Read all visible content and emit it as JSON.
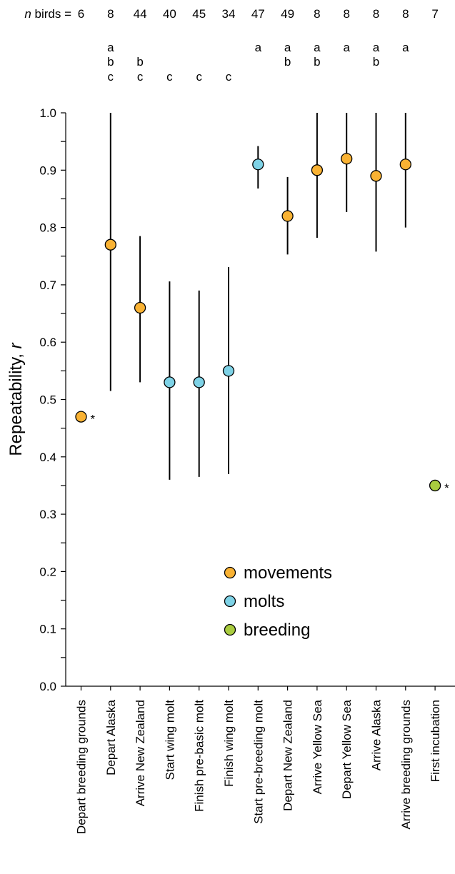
{
  "chart_data": {
    "type": "scatter",
    "title": "",
    "xlabel": "",
    "ylabel": "Repeatability,",
    "ylabel_italic": "r",
    "ylim": [
      0,
      1.0
    ],
    "yticks": [
      "0.0",
      "0.1",
      "0.2",
      "0.3",
      "0.4",
      "0.5",
      "0.6",
      "0.7",
      "0.8",
      "0.9",
      "1.0"
    ],
    "grid": false,
    "n_label_italic": "n",
    "n_label_rest": "birds =",
    "categories": [
      "Depart breeding grounds",
      "Depart Alaska",
      "Arrive New Zealand",
      "Start wing molt",
      "Finish pre-basic molt",
      "Finish wing molt",
      "Start pre-breeding molt",
      "Depart New Zealand",
      "Arrive Yellow Sea",
      "Depart Yellow Sea",
      "Arrive Alaska",
      "Arrive breeding grounds",
      "First incubation"
    ],
    "n_birds": [
      "6",
      "8",
      "44",
      "40",
      "45",
      "34",
      "47",
      "49",
      "8",
      "8",
      "8",
      "8",
      "7"
    ],
    "groups": [
      [],
      [
        "a",
        "b",
        "c"
      ],
      [
        "b",
        "c"
      ],
      [
        "c"
      ],
      [
        "c"
      ],
      [
        "c"
      ],
      [
        "a"
      ],
      [
        "a",
        "b"
      ],
      [
        "a",
        "b"
      ],
      [
        "a"
      ],
      [
        "a",
        "b"
      ],
      [
        "a"
      ],
      []
    ],
    "values": [
      0.47,
      0.77,
      0.66,
      0.53,
      0.53,
      0.55,
      0.91,
      0.82,
      0.9,
      0.92,
      0.89,
      0.91,
      0.35
    ],
    "ci_low": [
      null,
      0.515,
      0.53,
      0.36,
      0.365,
      0.37,
      0.868,
      0.753,
      0.782,
      0.827,
      0.758,
      0.8,
      null
    ],
    "ci_high": [
      null,
      1.0,
      0.785,
      0.706,
      0.69,
      0.731,
      0.942,
      0.888,
      1.0,
      1.0,
      1.0,
      1.0,
      null
    ],
    "category_type": [
      "movements",
      "movements",
      "movements",
      "molts",
      "molts",
      "molts",
      "molts",
      "movements",
      "movements",
      "movements",
      "movements",
      "movements",
      "breeding"
    ],
    "asterisk": [
      "*",
      "",
      "",
      "",
      "",
      "",
      "",
      "",
      "",
      "",
      "",
      "",
      "*"
    ],
    "legend": [
      {
        "name": "movements",
        "color": "#F9B233"
      },
      {
        "name": "molts",
        "color": "#7ED2E6"
      },
      {
        "name": "breeding",
        "color": "#A9CC3F"
      }
    ],
    "legend_position": "lower-middle",
    "colors": {
      "movements": "#F9B233",
      "molts": "#7ED2E6",
      "breeding": "#A9CC3F"
    }
  }
}
